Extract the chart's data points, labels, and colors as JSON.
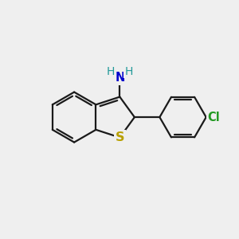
{
  "background_color": "#efefef",
  "bond_color": "#1a1a1a",
  "bond_width": 1.6,
  "S_color": "#b8a000",
  "N_color": "#0000cc",
  "Cl_color": "#229922",
  "H_color": "#229999",
  "font_size": 10.5,
  "figsize": [
    3.0,
    3.0
  ],
  "dpi": 100,
  "xlim": [
    0,
    10
  ],
  "ylim": [
    0,
    10
  ]
}
